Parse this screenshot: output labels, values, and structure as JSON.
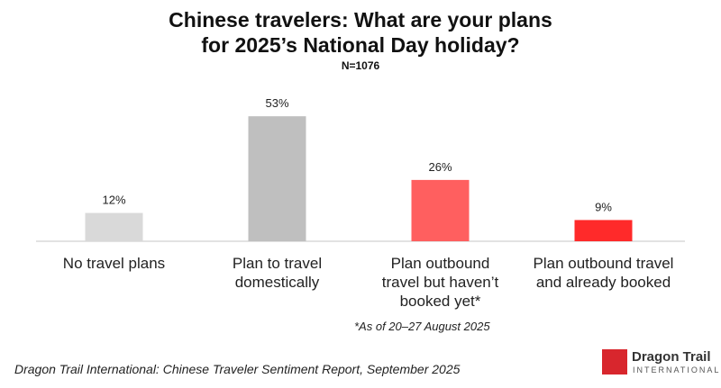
{
  "chart_data": {
    "type": "bar",
    "title": [
      "Chinese travelers: What are your plans",
      "for 2025’s National Day holiday?"
    ],
    "subtitle": "N=1076",
    "categories": [
      "No travel plans",
      "Plan to travel domestically",
      "Plan outbound travel but haven’t booked yet*",
      "Plan outbound travel and already booked"
    ],
    "values": [
      12,
      53,
      26,
      9
    ],
    "value_labels": [
      "12%",
      "53%",
      "26%",
      "9%"
    ],
    "colors": [
      "#d9d9d9",
      "#bfbfbf",
      "#ff5f5f",
      "#ff2a2a"
    ],
    "note": "*As of 20–27 August 2025",
    "source": "Dragon Trail International: Chinese Traveler Sentiment Report, September 2025",
    "logo": {
      "name": "Dragon Trail",
      "tagline": "INTERNATIONAL"
    }
  }
}
